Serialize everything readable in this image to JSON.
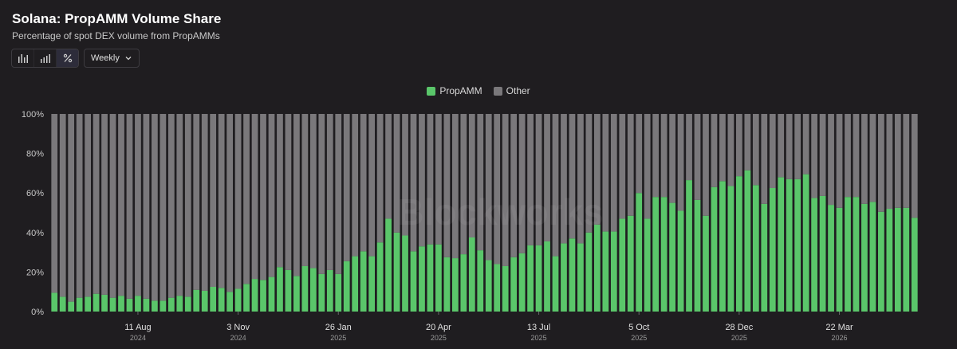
{
  "header": {
    "title": "Solana: PropAMM Volume Share",
    "subtitle": "Percentage of spot DEX volume from PropAMMs"
  },
  "toolbar": {
    "view_buttons": [
      {
        "icon": "bar-chart-icon",
        "active": false
      },
      {
        "icon": "stacked-bar-icon",
        "active": false
      },
      {
        "icon": "percent-icon",
        "active": true
      }
    ],
    "interval": {
      "selected": "Weekly"
    }
  },
  "watermark": "Blockworks",
  "colors": {
    "propamm": "#5ac66a",
    "other": "#7a787b",
    "background": "#1f1d20"
  },
  "chart_data": {
    "type": "bar",
    "stacked": true,
    "ylim": [
      0,
      100
    ],
    "yticks": [
      "0%",
      "20%",
      "40%",
      "60%",
      "80%",
      "100%"
    ],
    "xticks": [
      {
        "label": "11 Aug",
        "year": "2024",
        "index": 10
      },
      {
        "label": "3 Nov",
        "year": "2024",
        "index": 22
      },
      {
        "label": "26 Jan",
        "year": "2025",
        "index": 34
      },
      {
        "label": "20 Apr",
        "year": "2025",
        "index": 46
      },
      {
        "label": "13 Jul",
        "year": "2025",
        "index": 58
      },
      {
        "label": "5 Oct",
        "year": "2025",
        "index": 70
      },
      {
        "label": "28 Dec",
        "year": "2025",
        "index": 82
      },
      {
        "label": "22 Mar",
        "year": "2026",
        "index": 94
      }
    ],
    "legend_position": "top-center",
    "series": [
      {
        "name": "PropAMM",
        "values": [
          9.5,
          7.5,
          5,
          7,
          7.5,
          9,
          8.5,
          7,
          8,
          6.5,
          8,
          6.5,
          5.5,
          5.5,
          7,
          8,
          7.5,
          11,
          10.5,
          12.5,
          12,
          10,
          11.5,
          14,
          16.5,
          16,
          17.5,
          22.5,
          21,
          18,
          23,
          22,
          19,
          21,
          19,
          25.5,
          28,
          30.5,
          28,
          35,
          47,
          40,
          38.5,
          30.5,
          33,
          34,
          34,
          27.5,
          27,
          29,
          37.5,
          31,
          26,
          24,
          23,
          27.5,
          29.5,
          33.5,
          33.5,
          35.5,
          28,
          34.5,
          37,
          34.5,
          40,
          44,
          40.5,
          40.5,
          47,
          48.5,
          60,
          47,
          58,
          58,
          55,
          51,
          66.5,
          56.5,
          48.5,
          63,
          66,
          63.5,
          68.5,
          71.5,
          64,
          54.5,
          62.5,
          68,
          67,
          67,
          69.5,
          57.5,
          58.5,
          54,
          52.5,
          58,
          58,
          54.5,
          55.5,
          50.5,
          52,
          52.5,
          52.5,
          47.5
        ]
      },
      {
        "name": "Other",
        "values": [
          90.5,
          92.5,
          95,
          93,
          92.5,
          91,
          91.5,
          93,
          92,
          93.5,
          92,
          93.5,
          94.5,
          94.5,
          93,
          92,
          92.5,
          89,
          89.5,
          87.5,
          88,
          90,
          88.5,
          86,
          83.5,
          84,
          82.5,
          77.5,
          79,
          82,
          77,
          78,
          81,
          79,
          81,
          74.5,
          72,
          69.5,
          72,
          65,
          53,
          60,
          61.5,
          69.5,
          67,
          66,
          66,
          72.5,
          73,
          71,
          62.5,
          69,
          74,
          76,
          77,
          72.5,
          70.5,
          66.5,
          66.5,
          64.5,
          72,
          65.5,
          63,
          65.5,
          60,
          56,
          59.5,
          59.5,
          53,
          51.5,
          40,
          53,
          42,
          42,
          45,
          49,
          33.5,
          43.5,
          51.5,
          37,
          34,
          36.5,
          31.5,
          28.5,
          36,
          45.5,
          37.5,
          32,
          33,
          33,
          30.5,
          42.5,
          41.5,
          46,
          47.5,
          42,
          42,
          45.5,
          44.5,
          49.5,
          48,
          47.5,
          47.5,
          52.5
        ]
      }
    ]
  }
}
